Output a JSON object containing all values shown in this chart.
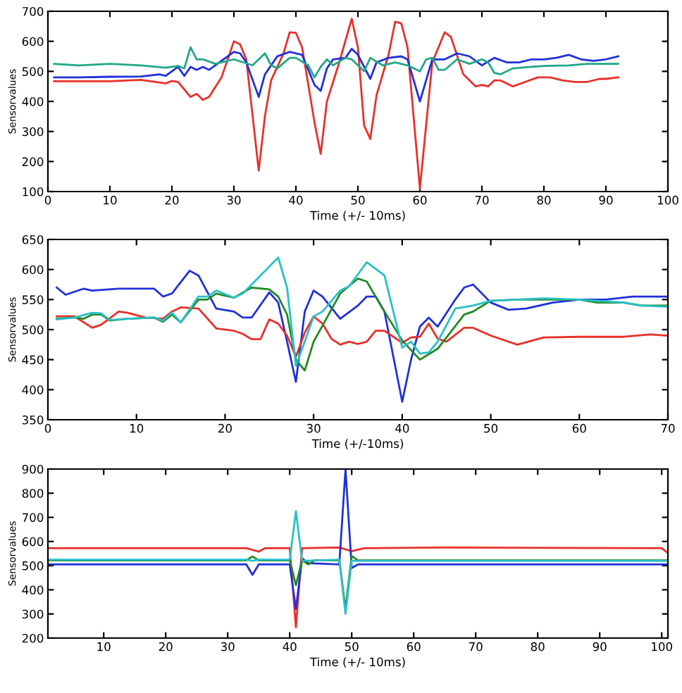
{
  "chart_data": [
    {
      "type": "line",
      "xlabel": "Time (+/- 10ms)",
      "ylabel": "Sensorvalues",
      "xlim": [
        0,
        100
      ],
      "ylim": [
        100,
        700
      ],
      "xticks": [
        0,
        10,
        20,
        30,
        40,
        50,
        60,
        70,
        80,
        90,
        100
      ],
      "yticks": [
        100,
        200,
        300,
        400,
        500,
        600,
        700
      ],
      "grid": false,
      "series": [
        {
          "color": "#e8302a",
          "x": [
            1,
            5,
            10,
            15,
            19,
            20,
            21,
            23,
            24,
            25,
            26,
            28,
            30,
            31,
            32,
            34,
            35,
            36,
            38,
            39,
            40,
            41,
            43,
            44,
            45,
            47,
            49,
            50,
            51,
            52,
            53,
            55,
            56,
            57,
            58,
            60,
            61,
            62,
            64,
            65,
            67,
            69,
            70,
            71,
            72,
            73,
            75,
            77,
            79,
            81,
            83,
            85,
            87,
            89,
            90,
            92
          ],
          "values": [
            467,
            467,
            467,
            472,
            460,
            468,
            465,
            415,
            425,
            405,
            415,
            480,
            600,
            590,
            540,
            170,
            350,
            470,
            560,
            630,
            628,
            580,
            330,
            225,
            400,
            530,
            675,
            580,
            320,
            275,
            420,
            560,
            665,
            660,
            580,
            110,
            320,
            530,
            630,
            615,
            490,
            450,
            455,
            450,
            470,
            470,
            450,
            465,
            480,
            480,
            470,
            465,
            465,
            475,
            475,
            480
          ]
        },
        {
          "color": "#2030d8",
          "x": [
            1,
            5,
            10,
            15,
            18,
            19,
            21,
            22,
            23,
            24,
            25,
            26,
            28,
            30,
            31,
            32,
            34,
            35,
            37,
            39,
            41,
            43,
            44,
            45,
            46,
            48,
            49,
            50,
            52,
            53,
            55,
            57,
            58,
            60,
            61,
            62,
            64,
            65,
            66,
            68,
            70,
            72,
            74,
            76,
            78,
            80,
            82,
            84,
            86,
            88,
            90,
            92
          ],
          "values": [
            480,
            480,
            482,
            483,
            490,
            485,
            515,
            485,
            515,
            505,
            515,
            505,
            535,
            565,
            560,
            530,
            415,
            490,
            550,
            565,
            555,
            455,
            435,
            510,
            540,
            545,
            575,
            555,
            475,
            530,
            545,
            550,
            540,
            400,
            470,
            540,
            540,
            550,
            560,
            550,
            520,
            545,
            530,
            530,
            540,
            540,
            545,
            555,
            540,
            535,
            540,
            550
          ]
        },
        {
          "color": "#20a888",
          "x": [
            1,
            5,
            10,
            15,
            19,
            21,
            22,
            23,
            24,
            25,
            27,
            30,
            33,
            35,
            36,
            37,
            39,
            40,
            42,
            43,
            44,
            45,
            46,
            48,
            49,
            51,
            52,
            54,
            56,
            58,
            60,
            61,
            62,
            63,
            64,
            66,
            68,
            70,
            71,
            72,
            73,
            75,
            78,
            80,
            84,
            87,
            90,
            92
          ],
          "values": [
            525,
            520,
            525,
            520,
            512,
            518,
            510,
            580,
            540,
            540,
            525,
            540,
            520,
            560,
            520,
            510,
            545,
            545,
            520,
            480,
            515,
            540,
            520,
            545,
            540,
            500,
            545,
            520,
            530,
            520,
            500,
            540,
            545,
            505,
            505,
            540,
            525,
            540,
            530,
            495,
            490,
            510,
            515,
            518,
            520,
            525,
            525,
            525
          ]
        }
      ]
    },
    {
      "type": "line",
      "xlabel": "Time (+/-10ms)",
      "ylabel": "Sensorvalues",
      "xlim": [
        0,
        70
      ],
      "ylim": [
        350,
        650
      ],
      "xticks": [
        0,
        10,
        20,
        30,
        40,
        50,
        60,
        70
      ],
      "yticks": [
        350,
        400,
        450,
        500,
        550,
        600,
        650
      ],
      "grid": false,
      "series": [
        {
          "color": "#2030d8",
          "x": [
            1,
            2,
            4,
            5,
            8,
            10,
            12,
            13,
            14,
            16,
            17,
            19,
            21,
            22,
            23,
            25,
            26,
            27,
            28,
            29,
            30,
            31,
            33,
            35,
            36,
            37,
            38,
            40,
            41,
            42,
            43,
            44,
            46,
            47,
            48,
            50,
            52,
            54,
            57,
            60,
            63,
            66,
            70
          ],
          "values": [
            570,
            558,
            568,
            565,
            568,
            568,
            568,
            555,
            560,
            598,
            590,
            535,
            530,
            520,
            520,
            562,
            545,
            480,
            413,
            530,
            565,
            555,
            518,
            540,
            555,
            555,
            530,
            380,
            450,
            505,
            520,
            505,
            550,
            570,
            575,
            545,
            533,
            535,
            545,
            550,
            550,
            555,
            555
          ]
        },
        {
          "color": "#e8302a",
          "x": [
            1,
            3,
            5,
            6,
            8,
            9,
            11,
            13,
            14,
            15,
            17,
            19,
            21,
            22,
            23,
            24,
            25,
            26,
            27,
            28,
            29,
            30,
            31,
            32,
            33,
            34,
            35,
            36,
            37,
            38,
            40,
            41,
            42,
            43,
            44,
            45,
            47,
            48,
            50,
            53,
            56,
            60,
            65,
            68,
            70
          ],
          "values": [
            522,
            522,
            503,
            508,
            530,
            528,
            520,
            518,
            530,
            537,
            535,
            502,
            498,
            493,
            484,
            484,
            517,
            510,
            490,
            455,
            495,
            522,
            510,
            485,
            475,
            480,
            476,
            480,
            498,
            498,
            478,
            487,
            488,
            510,
            485,
            480,
            503,
            503,
            490,
            475,
            487,
            488,
            488,
            492,
            490
          ]
        },
        {
          "color": "#208a20",
          "x": [
            1,
            3,
            4,
            5,
            6,
            7,
            9,
            12,
            13,
            14,
            15,
            17,
            18,
            19,
            21,
            23,
            25,
            26,
            27,
            28,
            29,
            30,
            33,
            35,
            36,
            38,
            40,
            42,
            44,
            47,
            48,
            50,
            53,
            56,
            60,
            62,
            65,
            67,
            70
          ],
          "values": [
            518,
            520,
            518,
            525,
            525,
            515,
            518,
            520,
            513,
            525,
            512,
            550,
            550,
            560,
            553,
            570,
            567,
            555,
            525,
            450,
            432,
            480,
            560,
            585,
            580,
            530,
            482,
            450,
            468,
            525,
            530,
            548,
            550,
            550,
            550,
            545,
            545,
            540,
            540
          ]
        },
        {
          "color": "#28c0c8",
          "x": [
            1,
            3,
            5,
            6,
            7,
            9,
            12,
            13,
            14,
            15,
            17,
            18,
            19,
            21,
            22,
            24,
            26,
            27,
            28,
            29,
            30,
            31,
            33,
            34,
            36,
            38,
            40,
            41,
            42,
            43,
            44,
            46,
            48,
            50,
            53,
            56,
            60,
            62,
            65,
            67,
            70
          ],
          "values": [
            517,
            520,
            528,
            527,
            516,
            518,
            520,
            515,
            528,
            512,
            555,
            555,
            565,
            553,
            560,
            590,
            620,
            570,
            440,
            480,
            522,
            530,
            565,
            572,
            612,
            590,
            470,
            480,
            460,
            462,
            480,
            535,
            540,
            548,
            550,
            552,
            550,
            548,
            545,
            540,
            538
          ]
        }
      ]
    },
    {
      "type": "line",
      "xlabel": "Time (+/- 10ms)",
      "ylabel": "Sensorvalues",
      "xlim": [
        1,
        101
      ],
      "ylim": [
        200,
        900
      ],
      "xticks": [
        10,
        20,
        30,
        40,
        50,
        60,
        70,
        80,
        90,
        100
      ],
      "yticks": [
        200,
        300,
        400,
        500,
        600,
        700,
        800,
        900
      ],
      "grid": false,
      "series": [
        {
          "color": "#e8302a",
          "x": [
            1,
            33,
            35,
            36,
            40,
            41,
            42,
            48,
            50,
            52,
            65,
            100,
            101
          ],
          "values": [
            572,
            572,
            558,
            572,
            572,
            245,
            572,
            575,
            560,
            572,
            575,
            572,
            552
          ]
        },
        {
          "color": "#2030d8",
          "x": [
            1,
            33,
            34,
            35,
            40,
            41,
            42,
            43,
            48,
            49,
            50,
            51,
            101
          ],
          "values": [
            505,
            505,
            462,
            505,
            505,
            320,
            530,
            510,
            505,
            900,
            490,
            505,
            505
          ]
        },
        {
          "color": "#208a20",
          "x": [
            1,
            33,
            34,
            35,
            40,
            41,
            42,
            43,
            44,
            48,
            49,
            50,
            51,
            101
          ],
          "values": [
            522,
            522,
            538,
            522,
            522,
            420,
            522,
            505,
            522,
            522,
            320,
            540,
            522,
            522
          ]
        },
        {
          "color": "#28c0c8",
          "x": [
            1,
            33,
            34,
            35,
            40,
            41,
            42,
            48,
            49,
            50,
            51,
            101
          ],
          "values": [
            525,
            525,
            520,
            525,
            525,
            725,
            520,
            525,
            300,
            520,
            520,
            520
          ]
        }
      ]
    }
  ]
}
